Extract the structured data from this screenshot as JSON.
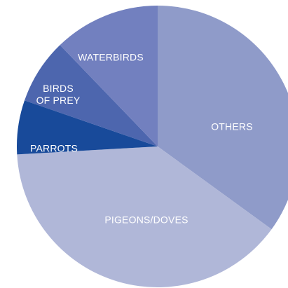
{
  "chart_data": {
    "type": "pie",
    "title": "",
    "start_angle_deg": 0,
    "direction": "clockwise",
    "slices": [
      {
        "label": "OTHERS",
        "label_lines": [
          "OTHERS"
        ],
        "value": 35.0,
        "color": "#8f9bc9"
      },
      {
        "label": "PIGEONS/DOVES",
        "label_lines": [
          "PIGEONS/DOVES"
        ],
        "value": 39.1,
        "color": "#b0b7d8"
      },
      {
        "label": "PARROTS",
        "label_lines": [
          "PARROTS"
        ],
        "value": 6.2,
        "color": "#184a9a"
      },
      {
        "label": "BIRDS OF PREY",
        "label_lines": [
          "BIRDS",
          "OF PREY"
        ],
        "value": 7.5,
        "color": "#4d66ae"
      },
      {
        "label": "WATERBIRDS",
        "label_lines": [
          "WATERBIRDS"
        ],
        "value": 12.2,
        "color": "#7280bf"
      }
    ]
  }
}
